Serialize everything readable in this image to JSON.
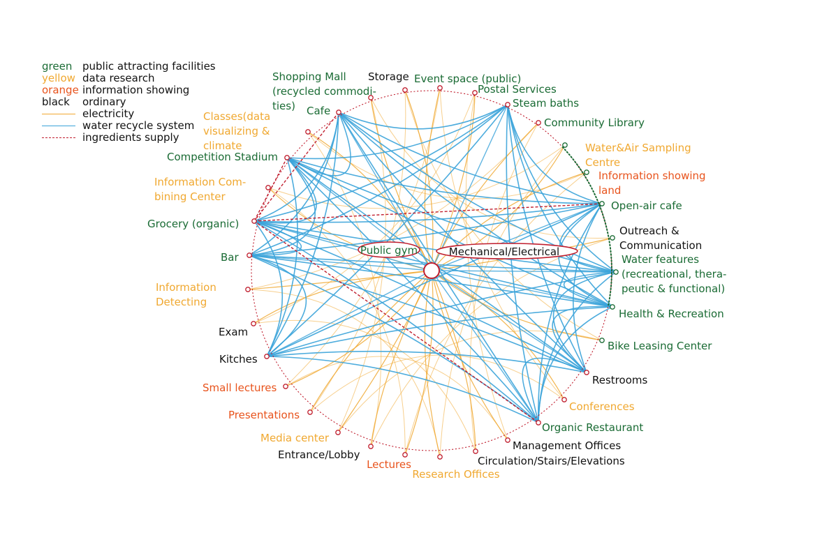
{
  "legend": [
    {
      "key": "green",
      "desc": "public attracting facilities",
      "color": "#1a6b34"
    },
    {
      "key": "yellow",
      "desc": "data research",
      "color": "#f0a830"
    },
    {
      "key": "orange",
      "desc": "information showing",
      "color": "#e8531c"
    },
    {
      "key": "black",
      "desc": "ordinary",
      "color": "#111111"
    },
    {
      "line": "solid",
      "desc": "electricity",
      "color": "#f0a830"
    },
    {
      "line": "solid",
      "desc": "water recycle system",
      "color": "#3aa3d9"
    },
    {
      "line": "dashed",
      "desc": "ingredients supply",
      "color": "#c01e2e"
    }
  ],
  "colors": {
    "green": "#1a6b34",
    "yellow": "#f0a830",
    "orange": "#e8531c",
    "black": "#111111",
    "water": "#3aa3d9",
    "electricity": "#f0a830",
    "supply": "#c01e2e",
    "node": "#c01e2e"
  },
  "hub": {
    "label_left": "Public gym",
    "label_right": "Mechanical/Electrical"
  },
  "nodes": [
    {
      "id": "shopping",
      "label": [
        "Shopping Mall",
        "(recycled commodi-",
        "ties)"
      ],
      "category": "green"
    },
    {
      "id": "storage",
      "label": [
        "Storage"
      ],
      "category": "black"
    },
    {
      "id": "event",
      "label": [
        "Event space (public)"
      ],
      "category": "green"
    },
    {
      "id": "postal",
      "label": [
        "Postal Services"
      ],
      "category": "green"
    },
    {
      "id": "steam",
      "label": [
        "Steam baths"
      ],
      "category": "green"
    },
    {
      "id": "library",
      "label": [
        "Community Library"
      ],
      "category": "green"
    },
    {
      "id": "sampling",
      "label": [
        "Water&Air Sampling",
        "Centre"
      ],
      "category": "yellow"
    },
    {
      "id": "infoland",
      "label": [
        "Information showing",
        "land"
      ],
      "category": "orange"
    },
    {
      "id": "opencafe",
      "label": [
        "Open-air cafe"
      ],
      "category": "green"
    },
    {
      "id": "outreach",
      "label": [
        "Outreach &",
        "Communication"
      ],
      "category": "black"
    },
    {
      "id": "waterfeat",
      "label": [
        "Water features",
        "(recreational, thera-",
        "peutic & functional)"
      ],
      "category": "green"
    },
    {
      "id": "health",
      "label": [
        "Health & Recreation"
      ],
      "category": "green"
    },
    {
      "id": "bike",
      "label": [
        "Bike Leasing Center"
      ],
      "category": "green"
    },
    {
      "id": "restrooms",
      "label": [
        "Restrooms"
      ],
      "category": "black"
    },
    {
      "id": "conferences",
      "label": [
        "Conferences"
      ],
      "category": "yellow"
    },
    {
      "id": "organic",
      "label": [
        "Organic Restaurant"
      ],
      "category": "green"
    },
    {
      "id": "mgmt",
      "label": [
        "Management Offices"
      ],
      "category": "black"
    },
    {
      "id": "circulation",
      "label": [
        "Circulation/Stairs/Elevations"
      ],
      "category": "black"
    },
    {
      "id": "research",
      "label": [
        "Research Offices"
      ],
      "category": "yellow"
    },
    {
      "id": "lectures",
      "label": [
        "Lectures"
      ],
      "category": "orange"
    },
    {
      "id": "entrance",
      "label": [
        "Entrance/Lobby"
      ],
      "category": "black"
    },
    {
      "id": "media",
      "label": [
        "Media center"
      ],
      "category": "yellow"
    },
    {
      "id": "presentations",
      "label": [
        "Presentations"
      ],
      "category": "orange"
    },
    {
      "id": "smalllect",
      "label": [
        "Small lectures"
      ],
      "category": "orange"
    },
    {
      "id": "kitches",
      "label": [
        "Kitches"
      ],
      "category": "black"
    },
    {
      "id": "exam",
      "label": [
        "Exam"
      ],
      "category": "black"
    },
    {
      "id": "infodetect",
      "label": [
        "Information",
        "Detecting"
      ],
      "category": "yellow"
    },
    {
      "id": "bar",
      "label": [
        "Bar"
      ],
      "category": "green"
    },
    {
      "id": "grocery",
      "label": [
        "Grocery (organic)"
      ],
      "category": "green"
    },
    {
      "id": "infocombine",
      "label": [
        "Information Com-",
        "bining Center"
      ],
      "category": "yellow"
    },
    {
      "id": "stadium",
      "label": [
        "Competition Stadium"
      ],
      "category": "green"
    },
    {
      "id": "classes",
      "label": [
        "Classes(data",
        "visualizing &",
        "climate"
      ],
      "category": "yellow"
    },
    {
      "id": "cafe",
      "label": [
        "Cafe"
      ],
      "category": "green"
    }
  ],
  "water_hubs": [
    "cafe",
    "stadium",
    "grocery",
    "bar",
    "kitches",
    "steam",
    "opencafe",
    "waterfeat",
    "health",
    "restrooms",
    "organic"
  ],
  "supply_links": [
    [
      "cafe",
      "grocery"
    ],
    [
      "stadium",
      "grocery"
    ],
    [
      "grocery",
      "opencafe"
    ],
    [
      "grocery",
      "organic"
    ]
  ],
  "electricity_sources": [
    "shopping",
    "storage",
    "event",
    "postal",
    "library",
    "sampling",
    "infoland",
    "outreach",
    "bike",
    "conferences",
    "mgmt",
    "circulation",
    "research",
    "lectures",
    "entrance",
    "media",
    "presentations",
    "smalllect",
    "exam",
    "infodetect",
    "infocombine",
    "classes"
  ]
}
